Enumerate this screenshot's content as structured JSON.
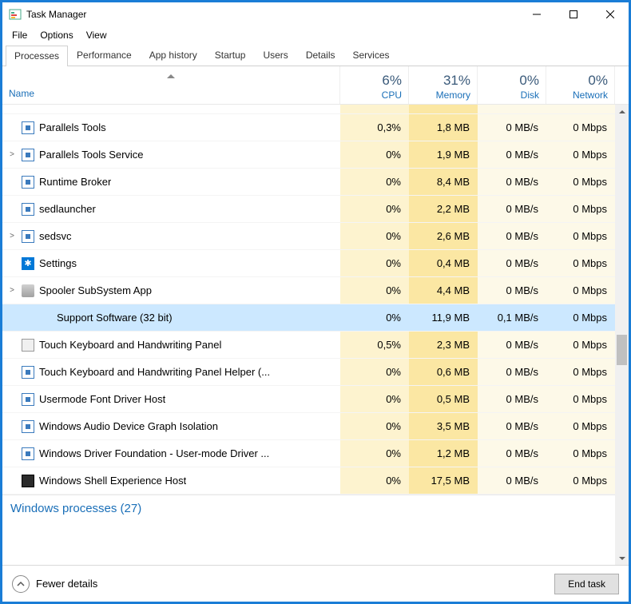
{
  "window": {
    "title": "Task Manager"
  },
  "menubar": [
    "File",
    "Options",
    "View"
  ],
  "tabs": [
    "Processes",
    "Performance",
    "App history",
    "Startup",
    "Users",
    "Details",
    "Services"
  ],
  "active_tab": 0,
  "columns": {
    "name_label": "Name",
    "stats": [
      {
        "pct": "6%",
        "label": "CPU"
      },
      {
        "pct": "31%",
        "label": "Memory"
      },
      {
        "pct": "0%",
        "label": "Disk"
      },
      {
        "pct": "0%",
        "label": "Network"
      }
    ]
  },
  "heat": {
    "cpu_bg": "#fdf3cf",
    "mem_bg": "#fbe7a3",
    "disk_bg": "#fdf9e8",
    "net_bg": "#fdf9e8",
    "selected_bg": "#cce8ff"
  },
  "rows": [
    {
      "expand": "",
      "icon": "default",
      "name": "Parallels Tools",
      "cpu": "0,3%",
      "mem": "1,8 MB",
      "disk": "0 MB/s",
      "net": "0 Mbps",
      "selected": false,
      "indent": 0
    },
    {
      "expand": ">",
      "icon": "default",
      "name": "Parallels Tools Service",
      "cpu": "0%",
      "mem": "1,9 MB",
      "disk": "0 MB/s",
      "net": "0 Mbps",
      "selected": false,
      "indent": 0
    },
    {
      "expand": "",
      "icon": "default",
      "name": "Runtime Broker",
      "cpu": "0%",
      "mem": "8,4 MB",
      "disk": "0 MB/s",
      "net": "0 Mbps",
      "selected": false,
      "indent": 0
    },
    {
      "expand": "",
      "icon": "default",
      "name": "sedlauncher",
      "cpu": "0%",
      "mem": "2,2 MB",
      "disk": "0 MB/s",
      "net": "0 Mbps",
      "selected": false,
      "indent": 0
    },
    {
      "expand": ">",
      "icon": "default",
      "name": "sedsvc",
      "cpu": "0%",
      "mem": "2,6 MB",
      "disk": "0 MB/s",
      "net": "0 Mbps",
      "selected": false,
      "indent": 0
    },
    {
      "expand": "",
      "icon": "gear",
      "name": "Settings",
      "cpu": "0%",
      "mem": "0,4 MB",
      "disk": "0 MB/s",
      "net": "0 Mbps",
      "selected": false,
      "indent": 0
    },
    {
      "expand": ">",
      "icon": "printer",
      "name": "Spooler SubSystem App",
      "cpu": "0%",
      "mem": "4,4 MB",
      "disk": "0 MB/s",
      "net": "0 Mbps",
      "selected": false,
      "indent": 0
    },
    {
      "expand": "",
      "icon": "none",
      "name": "Support Software (32 bit)",
      "cpu": "0%",
      "mem": "11,9 MB",
      "disk": "0,1 MB/s",
      "net": "0 Mbps",
      "selected": true,
      "indent": 1
    },
    {
      "expand": "",
      "icon": "kb",
      "name": "Touch Keyboard and Handwriting Panel",
      "cpu": "0,5%",
      "mem": "2,3 MB",
      "disk": "0 MB/s",
      "net": "0 Mbps",
      "selected": false,
      "indent": 0
    },
    {
      "expand": "",
      "icon": "default",
      "name": "Touch Keyboard and Handwriting Panel Helper (...",
      "cpu": "0%",
      "mem": "0,6 MB",
      "disk": "0 MB/s",
      "net": "0 Mbps",
      "selected": false,
      "indent": 0
    },
    {
      "expand": "",
      "icon": "default",
      "name": "Usermode Font Driver Host",
      "cpu": "0%",
      "mem": "0,5 MB",
      "disk": "0 MB/s",
      "net": "0 Mbps",
      "selected": false,
      "indent": 0
    },
    {
      "expand": "",
      "icon": "default",
      "name": "Windows Audio Device Graph Isolation",
      "cpu": "0%",
      "mem": "3,5 MB",
      "disk": "0 MB/s",
      "net": "0 Mbps",
      "selected": false,
      "indent": 0
    },
    {
      "expand": "",
      "icon": "default",
      "name": "Windows Driver Foundation - User-mode Driver ...",
      "cpu": "0%",
      "mem": "1,2 MB",
      "disk": "0 MB/s",
      "net": "0 Mbps",
      "selected": false,
      "indent": 0
    },
    {
      "expand": "",
      "icon": "dark",
      "name": "Windows Shell Experience Host",
      "cpu": "0%",
      "mem": "17,5 MB",
      "disk": "0 MB/s",
      "net": "0 Mbps",
      "selected": false,
      "indent": 0
    }
  ],
  "group": "Windows processes (27)",
  "footer": {
    "fewer": "Fewer details",
    "end_task": "End task"
  }
}
